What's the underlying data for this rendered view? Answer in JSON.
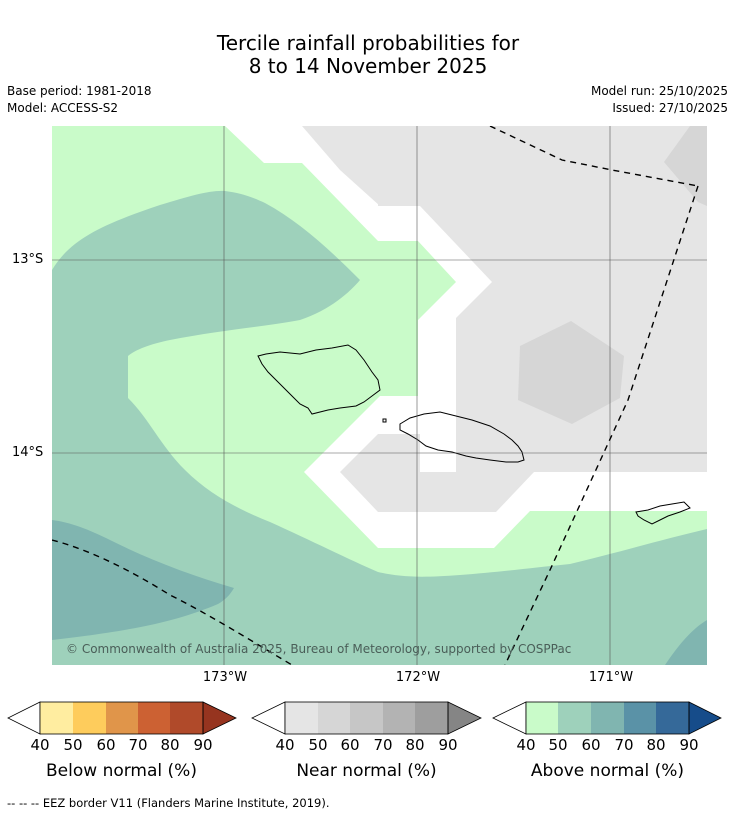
{
  "header": {
    "title_line1": "Tercile rainfall probabilities for",
    "title_line2": "8 to 14 November 2025",
    "base_period": "Base period: 1981-2018",
    "model": "Model: ACCESS-S2",
    "model_run": "Model run: 25/10/2025",
    "issued": "Issued: 27/10/2025"
  },
  "map": {
    "lat_labels": [
      "13°S",
      "14°S"
    ],
    "lon_labels": [
      "173°W",
      "172°W",
      "171°W"
    ],
    "copyright": "© Commonwealth of Australia 2025, Bureau of Meteorology, supported by COSPPac",
    "eez_note": "--  --  -- EEZ border V11 (Flanders Marine Institute, 2019)."
  },
  "colorbars": [
    {
      "title": "Below normal (%)",
      "ticks": [
        "40",
        "50",
        "60",
        "70",
        "80",
        "90"
      ],
      "colors": [
        "#ffffff",
        "#ffeda0",
        "#fecc5c",
        "#e0954a",
        "#cc6133",
        "#b04a2a",
        "#96341f"
      ]
    },
    {
      "title": "Near normal (%)",
      "ticks": [
        "40",
        "50",
        "60",
        "70",
        "80",
        "90"
      ],
      "colors": [
        "#ffffff",
        "#e5e5e5",
        "#d6d6d6",
        "#c6c6c6",
        "#b3b3b3",
        "#9e9e9e",
        "#858585"
      ]
    },
    {
      "title": "Above normal (%)",
      "ticks": [
        "40",
        "50",
        "60",
        "70",
        "80",
        "90"
      ],
      "colors": [
        "#ffffff",
        "#c9fbc9",
        "#9ed1bb",
        "#80b5b0",
        "#5a92a7",
        "#356999",
        "#164c8a"
      ]
    }
  ]
}
